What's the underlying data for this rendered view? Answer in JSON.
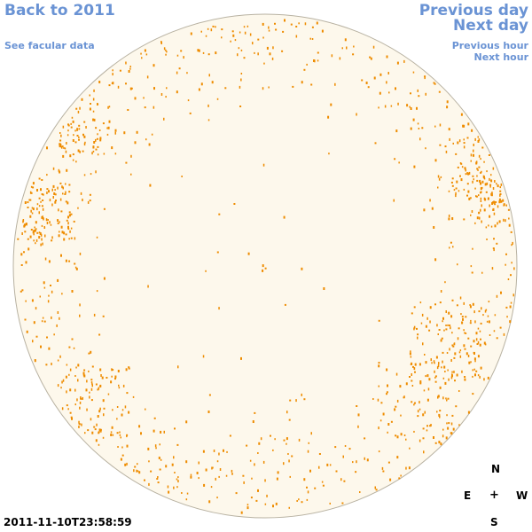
{
  "nav": {
    "back_label": "Back to 2011",
    "facular_label": "See facular data",
    "prev_day_label": "Previous day",
    "next_day_label": "Next day",
    "prev_hour_label": "Previous hour",
    "next_hour_label": "Next hour"
  },
  "compass": {
    "north": "N",
    "east": "E",
    "west": "W",
    "south": "S",
    "center": "+"
  },
  "timestamp": "2011-11-10T23:58:59",
  "colors": {
    "link": "#6a93d4",
    "disk_fill": "#fdf8ec",
    "disk_edge": "#b8b2a2",
    "facula": "#ee8c00"
  }
}
